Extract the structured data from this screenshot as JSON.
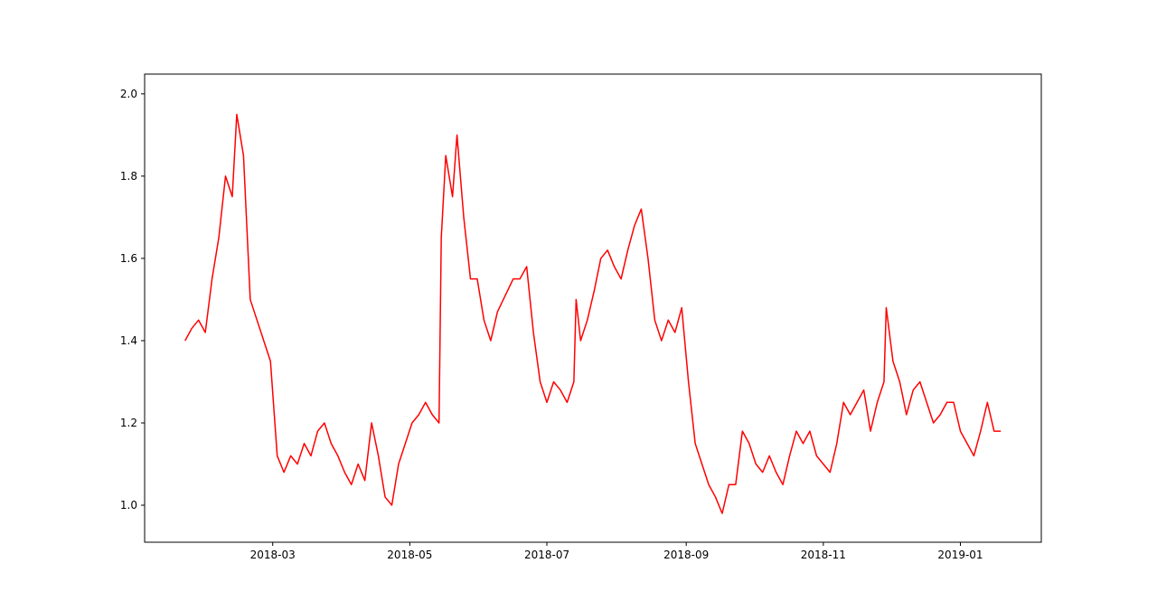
{
  "chart_data": {
    "type": "line",
    "color": "#ff0000",
    "xlim": [
      "2018-01-03",
      "2019-02-06"
    ],
    "ylim": [
      0.91,
      2.048
    ],
    "xticks": [
      {
        "value": "2018-03-01",
        "label": "2018-03"
      },
      {
        "value": "2018-05-01",
        "label": "2018-05"
      },
      {
        "value": "2018-07-01",
        "label": "2018-07"
      },
      {
        "value": "2018-09-01",
        "label": "2018-09"
      },
      {
        "value": "2018-11-01",
        "label": "2018-11"
      },
      {
        "value": "2019-01-01",
        "label": "2019-01"
      }
    ],
    "yticks": [
      {
        "value": 1,
        "label": "1.0"
      },
      1.2,
      1.4,
      1.6,
      1.8,
      {
        "value": 2,
        "label": "2.0"
      }
    ],
    "grid": false,
    "x": [
      "2018-01-21",
      "2018-01-24",
      "2018-01-27",
      "2018-01-30",
      "2018-02-02",
      "2018-02-05",
      "2018-02-08",
      "2018-02-11",
      "2018-02-13",
      "2018-02-16",
      "2018-02-19",
      "2018-02-22",
      "2018-02-25",
      "2018-02-28",
      "2018-03-03",
      "2018-03-06",
      "2018-03-09",
      "2018-03-12",
      "2018-03-15",
      "2018-03-18",
      "2018-03-21",
      "2018-03-24",
      "2018-03-27",
      "2018-03-30",
      "2018-04-02",
      "2018-04-05",
      "2018-04-08",
      "2018-04-11",
      "2018-04-14",
      "2018-04-17",
      "2018-04-20",
      "2018-04-23",
      "2018-04-26",
      "2018-04-29",
      "2018-05-02",
      "2018-05-05",
      "2018-05-08",
      "2018-05-11",
      "2018-05-14",
      "2018-05-15",
      "2018-05-17",
      "2018-05-20",
      "2018-05-22",
      "2018-05-25",
      "2018-05-28",
      "2018-05-31",
      "2018-06-03",
      "2018-06-06",
      "2018-06-09",
      "2018-06-16",
      "2018-06-19",
      "2018-06-22",
      "2018-06-25",
      "2018-06-28",
      "2018-07-01",
      "2018-07-04",
      "2018-07-07",
      "2018-07-10",
      "2018-07-13",
      "2018-07-14",
      "2018-07-16",
      "2018-07-19",
      "2018-07-22",
      "2018-07-25",
      "2018-07-28",
      "2018-07-31",
      "2018-08-03",
      "2018-08-06",
      "2018-08-09",
      "2018-08-12",
      "2018-08-15",
      "2018-08-18",
      "2018-08-21",
      "2018-08-24",
      "2018-08-27",
      "2018-08-30",
      "2018-09-02",
      "2018-09-05",
      "2018-09-08",
      "2018-09-11",
      "2018-09-14",
      "2018-09-17",
      "2018-09-20",
      "2018-09-23",
      "2018-09-26",
      "2018-09-29",
      "2018-10-02",
      "2018-10-05",
      "2018-10-08",
      "2018-10-11",
      "2018-10-14",
      "2018-10-17",
      "2018-10-20",
      "2018-10-23",
      "2018-10-26",
      "2018-10-29",
      "2018-11-01",
      "2018-11-04",
      "2018-11-07",
      "2018-11-10",
      "2018-11-13",
      "2018-11-16",
      "2018-11-19",
      "2018-11-22",
      "2018-11-25",
      "2018-11-28",
      "2018-11-29",
      "2018-12-02",
      "2018-12-05",
      "2018-12-08",
      "2018-12-11",
      "2018-12-14",
      "2018-12-17",
      "2018-12-20",
      "2018-12-23",
      "2018-12-26",
      "2018-12-29",
      "2019-01-01",
      "2019-01-04",
      "2019-01-07",
      "2019-01-10",
      "2019-01-13",
      "2019-01-16",
      "2019-01-19"
    ],
    "values": [
      1.4,
      1.43,
      1.45,
      1.42,
      1.55,
      1.65,
      1.8,
      1.75,
      1.95,
      1.85,
      1.5,
      1.45,
      1.4,
      1.35,
      1.12,
      1.08,
      1.12,
      1.1,
      1.15,
      1.12,
      1.18,
      1.2,
      1.15,
      1.12,
      1.08,
      1.05,
      1.1,
      1.06,
      1.2,
      1.12,
      1.02,
      1.0,
      1.1,
      1.15,
      1.2,
      1.22,
      1.25,
      1.22,
      1.2,
      1.65,
      1.85,
      1.75,
      1.9,
      1.7,
      1.55,
      1.55,
      1.45,
      1.4,
      1.47,
      1.55,
      1.55,
      1.58,
      1.42,
      1.3,
      1.25,
      1.3,
      1.28,
      1.25,
      1.3,
      1.5,
      1.4,
      1.45,
      1.52,
      1.6,
      1.62,
      1.58,
      1.55,
      1.62,
      1.68,
      1.72,
      1.6,
      1.45,
      1.4,
      1.45,
      1.42,
      1.48,
      1.3,
      1.15,
      1.1,
      1.05,
      1.02,
      0.98,
      1.05,
      1.05,
      1.18,
      1.15,
      1.1,
      1.08,
      1.12,
      1.08,
      1.05,
      1.12,
      1.18,
      1.15,
      1.18,
      1.12,
      1.1,
      1.08,
      1.15,
      1.25,
      1.22,
      1.25,
      1.28,
      1.18,
      1.25,
      1.3,
      1.48,
      1.35,
      1.3,
      1.22,
      1.28,
      1.3,
      1.25,
      1.2,
      1.22,
      1.25,
      1.25,
      1.18,
      1.15,
      1.12,
      1.18,
      1.25,
      1.18,
      1.18
    ]
  }
}
